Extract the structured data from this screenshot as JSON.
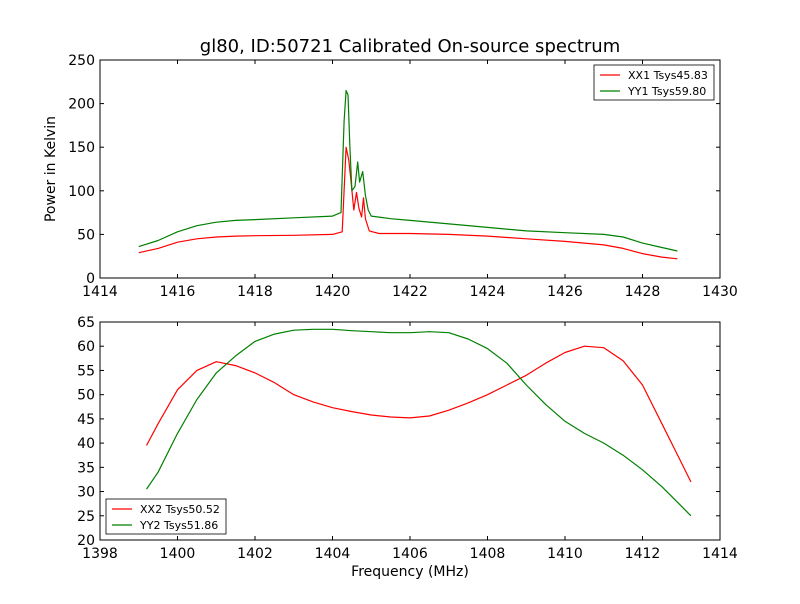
{
  "figure_title": "gl80, ID:50721 Calibrated On-source spectrum",
  "chart_data": [
    {
      "type": "line",
      "title": "gl80, ID:50721 Calibrated On-source spectrum",
      "xlabel": "",
      "ylabel": "Power in Kelvin",
      "xlim": [
        1414,
        1430
      ],
      "ylim": [
        0,
        250
      ],
      "xticks": [
        1414,
        1416,
        1418,
        1420,
        1422,
        1424,
        1426,
        1428,
        1430
      ],
      "yticks": [
        0,
        50,
        100,
        150,
        200,
        250
      ],
      "grid": false,
      "legend_position": "top-right",
      "series": [
        {
          "name": "XX1 Tsys45.83",
          "color": "#ff0000",
          "points": [
            [
              1415.0,
              29
            ],
            [
              1415.5,
              34
            ],
            [
              1416.0,
              41
            ],
            [
              1416.5,
              45
            ],
            [
              1417.0,
              47
            ],
            [
              1417.5,
              48
            ],
            [
              1418.0,
              48.5
            ],
            [
              1419.0,
              49
            ],
            [
              1420.0,
              50
            ],
            [
              1420.25,
              53
            ],
            [
              1420.35,
              150
            ],
            [
              1420.42,
              135
            ],
            [
              1420.48,
              110
            ],
            [
              1420.55,
              78
            ],
            [
              1420.62,
              98
            ],
            [
              1420.68,
              80
            ],
            [
              1420.75,
              70
            ],
            [
              1420.8,
              92
            ],
            [
              1420.85,
              68
            ],
            [
              1420.95,
              54
            ],
            [
              1421.2,
              51
            ],
            [
              1422.0,
              51
            ],
            [
              1423.0,
              50
            ],
            [
              1424.0,
              48
            ],
            [
              1425.0,
              45
            ],
            [
              1426.0,
              42
            ],
            [
              1427.0,
              38
            ],
            [
              1427.5,
              34
            ],
            [
              1428.0,
              28
            ],
            [
              1428.5,
              24
            ],
            [
              1428.9,
              22
            ]
          ]
        },
        {
          "name": "YY1 Tsys59.80",
          "color": "#008000",
          "points": [
            [
              1415.0,
              36
            ],
            [
              1415.5,
              43
            ],
            [
              1416.0,
              53
            ],
            [
              1416.5,
              60
            ],
            [
              1417.0,
              64
            ],
            [
              1417.5,
              66
            ],
            [
              1418.0,
              67
            ],
            [
              1419.0,
              69
            ],
            [
              1420.0,
              71
            ],
            [
              1420.22,
              75
            ],
            [
              1420.3,
              180
            ],
            [
              1420.35,
              215
            ],
            [
              1420.4,
              210
            ],
            [
              1420.45,
              150
            ],
            [
              1420.5,
              100
            ],
            [
              1420.58,
              105
            ],
            [
              1420.65,
              133
            ],
            [
              1420.7,
              110
            ],
            [
              1420.78,
              122
            ],
            [
              1420.85,
              95
            ],
            [
              1420.92,
              78
            ],
            [
              1421.0,
              71
            ],
            [
              1421.5,
              68
            ],
            [
              1422.0,
              66
            ],
            [
              1423.0,
              62
            ],
            [
              1424.0,
              58
            ],
            [
              1425.0,
              54
            ],
            [
              1426.0,
              52
            ],
            [
              1427.0,
              50
            ],
            [
              1427.5,
              47
            ],
            [
              1428.0,
              40
            ],
            [
              1428.5,
              35
            ],
            [
              1428.9,
              31
            ]
          ]
        }
      ]
    },
    {
      "type": "line",
      "title": "",
      "xlabel": "Frequency (MHz)",
      "ylabel": "",
      "xlim": [
        1398,
        1414
      ],
      "ylim": [
        20,
        65
      ],
      "xticks": [
        1398,
        1400,
        1402,
        1404,
        1406,
        1408,
        1410,
        1412,
        1414
      ],
      "yticks": [
        20,
        25,
        30,
        35,
        40,
        45,
        50,
        55,
        60,
        65
      ],
      "grid": false,
      "legend_position": "bottom-left",
      "series": [
        {
          "name": "XX2 Tsys50.52",
          "color": "#ff0000",
          "points": [
            [
              1399.2,
              39.5
            ],
            [
              1399.5,
              44
            ],
            [
              1400.0,
              51
            ],
            [
              1400.5,
              55
            ],
            [
              1401.0,
              56.8
            ],
            [
              1401.5,
              56
            ],
            [
              1402.0,
              54.5
            ],
            [
              1402.5,
              52.5
            ],
            [
              1403.0,
              50
            ],
            [
              1403.5,
              48.5
            ],
            [
              1404.0,
              47.3
            ],
            [
              1404.5,
              46.5
            ],
            [
              1405.0,
              45.8
            ],
            [
              1405.5,
              45.4
            ],
            [
              1406.0,
              45.2
            ],
            [
              1406.5,
              45.6
            ],
            [
              1407.0,
              46.8
            ],
            [
              1407.5,
              48.3
            ],
            [
              1408.0,
              50
            ],
            [
              1408.5,
              52
            ],
            [
              1409.0,
              54
            ],
            [
              1409.5,
              56.5
            ],
            [
              1410.0,
              58.7
            ],
            [
              1410.5,
              60
            ],
            [
              1411.0,
              59.7
            ],
            [
              1411.5,
              57
            ],
            [
              1412.0,
              52
            ],
            [
              1412.5,
              44
            ],
            [
              1413.0,
              36
            ],
            [
              1413.25,
              32
            ]
          ]
        },
        {
          "name": "YY2 Tsys51.86",
          "color": "#008000",
          "points": [
            [
              1399.2,
              30.5
            ],
            [
              1399.5,
              34
            ],
            [
              1400.0,
              42
            ],
            [
              1400.5,
              49
            ],
            [
              1401.0,
              54.5
            ],
            [
              1401.5,
              58
            ],
            [
              1402.0,
              61
            ],
            [
              1402.5,
              62.5
            ],
            [
              1403.0,
              63.3
            ],
            [
              1403.5,
              63.5
            ],
            [
              1404.0,
              63.5
            ],
            [
              1404.5,
              63.2
            ],
            [
              1405.0,
              63
            ],
            [
              1405.5,
              62.8
            ],
            [
              1406.0,
              62.8
            ],
            [
              1406.5,
              63
            ],
            [
              1407.0,
              62.8
            ],
            [
              1407.5,
              61.5
            ],
            [
              1408.0,
              59.5
            ],
            [
              1408.5,
              56.5
            ],
            [
              1409.0,
              52
            ],
            [
              1409.5,
              48
            ],
            [
              1410.0,
              44.5
            ],
            [
              1410.5,
              42
            ],
            [
              1411.0,
              40
            ],
            [
              1411.5,
              37.5
            ],
            [
              1412.0,
              34.5
            ],
            [
              1412.5,
              31
            ],
            [
              1413.0,
              27
            ],
            [
              1413.25,
              25
            ]
          ]
        }
      ]
    }
  ]
}
